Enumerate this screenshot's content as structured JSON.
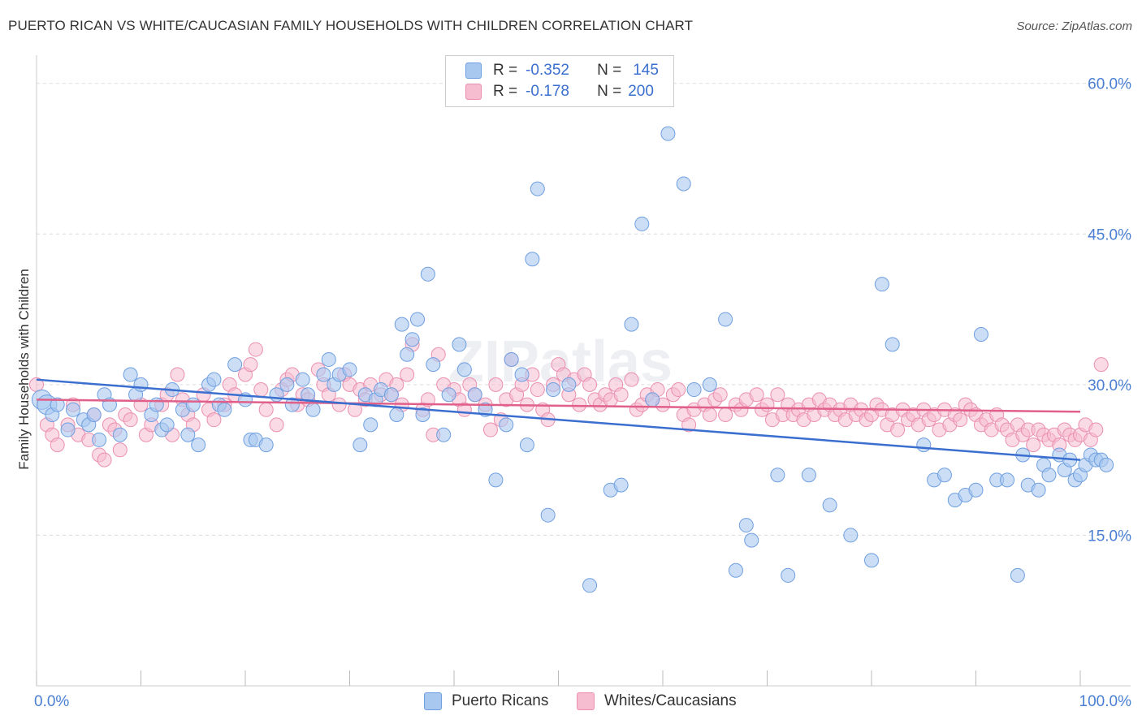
{
  "title": "PUERTO RICAN VS WHITE/CAUCASIAN FAMILY HOUSEHOLDS WITH CHILDREN CORRELATION CHART",
  "source": "Source: ZipAtlas.com",
  "watermark": "ZIPatlas",
  "legend": {
    "r_label": "R =",
    "n_label": "N =",
    "series1_r": "-0.352",
    "series1_n": "145",
    "series2_r": "-0.178",
    "series2_n": "200"
  },
  "colors": {
    "blue_fill": "#a9c8f0",
    "blue_stroke": "#6f9fe0",
    "blue_line": "#3a6fd0",
    "pink_fill": "#f6bcd0",
    "pink_stroke": "#eb8fb0",
    "pink_line": "#e0608a",
    "axis_text": "#4a7fd4"
  },
  "chart_data": {
    "type": "scatter",
    "title": "PUERTO RICAN VS WHITE/CAUCASIAN FAMILY HOUSEHOLDS WITH CHILDREN CORRELATION CHART",
    "xlabel": "",
    "ylabel": "Family Households with Children",
    "xlim": [
      0,
      100
    ],
    "ylim": [
      0,
      62
    ],
    "x_tick_labels": [
      "0.0%",
      "100.0%"
    ],
    "y_ticks": [
      15,
      30,
      45,
      60
    ],
    "y_tick_labels": [
      "15.0%",
      "30.0%",
      "45.0%",
      "60.0%"
    ],
    "grid": true,
    "legend_position": "top-center",
    "series": [
      {
        "name": "Puerto Ricans",
        "r": -0.352,
        "n": 145,
        "trend": {
          "x": [
            0,
            100
          ],
          "y": [
            30.5,
            22.5
          ]
        },
        "points": [
          [
            0.5,
            28.5
          ],
          [
            1,
            28
          ],
          [
            1.5,
            27
          ],
          [
            2,
            28
          ],
          [
            3,
            25.5
          ],
          [
            3.5,
            27.5
          ],
          [
            4.5,
            26.5
          ],
          [
            5,
            26
          ],
          [
            5.5,
            27
          ],
          [
            6,
            24.5
          ],
          [
            6.5,
            29
          ],
          [
            7,
            28
          ],
          [
            8,
            25
          ],
          [
            9,
            31
          ],
          [
            9.5,
            29
          ],
          [
            10,
            30
          ],
          [
            11,
            27
          ],
          [
            11.5,
            28
          ],
          [
            12,
            25.5
          ],
          [
            12.5,
            26
          ],
          [
            13,
            29.5
          ],
          [
            14,
            27.5
          ],
          [
            14.5,
            25
          ],
          [
            15,
            28
          ],
          [
            15.5,
            24
          ],
          [
            16.5,
            30
          ],
          [
            17,
            30.5
          ],
          [
            17.5,
            28
          ],
          [
            18,
            27.5
          ],
          [
            19,
            32
          ],
          [
            20,
            28.5
          ],
          [
            20.5,
            24.5
          ],
          [
            21,
            24.5
          ],
          [
            22,
            24
          ],
          [
            23,
            29
          ],
          [
            24,
            30
          ],
          [
            24.5,
            28
          ],
          [
            25.5,
            30.5
          ],
          [
            26,
            29
          ],
          [
            26.5,
            27.5
          ],
          [
            27.5,
            31
          ],
          [
            28,
            32.5
          ],
          [
            28.5,
            30
          ],
          [
            29,
            31
          ],
          [
            30,
            31.5
          ],
          [
            31,
            24
          ],
          [
            31.5,
            29
          ],
          [
            32,
            26
          ],
          [
            32.5,
            28.5
          ],
          [
            33,
            29.5
          ],
          [
            34,
            29
          ],
          [
            34.5,
            27
          ],
          [
            35,
            36
          ],
          [
            35.5,
            33
          ],
          [
            36,
            34.5
          ],
          [
            36.5,
            36.5
          ],
          [
            37,
            27
          ],
          [
            37.5,
            41
          ],
          [
            38,
            32
          ],
          [
            39,
            25
          ],
          [
            39.5,
            29
          ],
          [
            40.5,
            34
          ],
          [
            41,
            31.5
          ],
          [
            42,
            29
          ],
          [
            43,
            27.5
          ],
          [
            44,
            20.5
          ],
          [
            45,
            26
          ],
          [
            45.5,
            32.5
          ],
          [
            46.5,
            31
          ],
          [
            47,
            24
          ],
          [
            47.5,
            42.5
          ],
          [
            48,
            49.5
          ],
          [
            49,
            17
          ],
          [
            49.5,
            29.5
          ],
          [
            51,
            30
          ],
          [
            53,
            10
          ],
          [
            55,
            19.5
          ],
          [
            56,
            20
          ],
          [
            57,
            36
          ],
          [
            58,
            46
          ],
          [
            59,
            28.5
          ],
          [
            60.5,
            55
          ],
          [
            62,
            50
          ],
          [
            63,
            29.5
          ],
          [
            64.5,
            30
          ],
          [
            66,
            36.5
          ],
          [
            67,
            11.5
          ],
          [
            68,
            16
          ],
          [
            68.5,
            14.5
          ],
          [
            71,
            21
          ],
          [
            72,
            11
          ],
          [
            74,
            21
          ],
          [
            76,
            18
          ],
          [
            78,
            15
          ],
          [
            80,
            12.5
          ],
          [
            81,
            40
          ],
          [
            82,
            34
          ],
          [
            85,
            24
          ],
          [
            86,
            20.5
          ],
          [
            87,
            21
          ],
          [
            88,
            18.5
          ],
          [
            89,
            19
          ],
          [
            90,
            19.5
          ],
          [
            90.5,
            35
          ],
          [
            92,
            20.5
          ],
          [
            93,
            20.5
          ],
          [
            94,
            11
          ],
          [
            94.5,
            23
          ],
          [
            95,
            20
          ],
          [
            96,
            19.5
          ],
          [
            96.5,
            22
          ],
          [
            97,
            21
          ],
          [
            98,
            23
          ],
          [
            98.5,
            21.5
          ],
          [
            99,
            22.5
          ],
          [
            99.5,
            20.5
          ],
          [
            100,
            21
          ],
          [
            100.5,
            22
          ],
          [
            101,
            23
          ],
          [
            101.5,
            22.5
          ],
          [
            102,
            22.5
          ],
          [
            102.5,
            22
          ]
        ]
      },
      {
        "name": "Whites/Caucasians",
        "r": -0.178,
        "n": 200,
        "trend": {
          "x": [
            0,
            100
          ],
          "y": [
            28.5,
            27.3
          ]
        },
        "points": [
          [
            0,
            30
          ],
          [
            1,
            26
          ],
          [
            1.5,
            25
          ],
          [
            2,
            24
          ],
          [
            3,
            26
          ],
          [
            3.5,
            28
          ],
          [
            4,
            25
          ],
          [
            5,
            24.5
          ],
          [
            5.5,
            27
          ],
          [
            6,
            23
          ],
          [
            6.5,
            22.5
          ],
          [
            7,
            26
          ],
          [
            7.5,
            25.5
          ],
          [
            8,
            23.5
          ],
          [
            8.5,
            27
          ],
          [
            9,
            26.5
          ],
          [
            10,
            28
          ],
          [
            10.5,
            25
          ],
          [
            11,
            26
          ],
          [
            12,
            28
          ],
          [
            12.5,
            29
          ],
          [
            13,
            25
          ],
          [
            13.5,
            31
          ],
          [
            14,
            28.5
          ],
          [
            14.5,
            27
          ],
          [
            15,
            26
          ],
          [
            16,
            29
          ],
          [
            16.5,
            27.5
          ],
          [
            17,
            26.5
          ],
          [
            18,
            28
          ],
          [
            18.5,
            30
          ],
          [
            19,
            29
          ],
          [
            20,
            31
          ],
          [
            20.5,
            32
          ],
          [
            21,
            33.5
          ],
          [
            21.5,
            29.5
          ],
          [
            22,
            27.5
          ],
          [
            23,
            26
          ],
          [
            23.5,
            29.5
          ],
          [
            24,
            30.5
          ],
          [
            24.5,
            31
          ],
          [
            25,
            28
          ],
          [
            25.5,
            29
          ],
          [
            26,
            28.5
          ],
          [
            27,
            31.5
          ],
          [
            27.5,
            30
          ],
          [
            28,
            29
          ],
          [
            29,
            28
          ],
          [
            29.5,
            31
          ],
          [
            30,
            30
          ],
          [
            30.5,
            27.5
          ],
          [
            31,
            29.5
          ],
          [
            31.5,
            28.5
          ],
          [
            32,
            30
          ],
          [
            33,
            29
          ],
          [
            33.5,
            30.5
          ],
          [
            34,
            29
          ],
          [
            34.5,
            30
          ],
          [
            35,
            28
          ],
          [
            35.5,
            31
          ],
          [
            36,
            34
          ],
          [
            37,
            27.5
          ],
          [
            37.5,
            28.5
          ],
          [
            38,
            25
          ],
          [
            38.5,
            33
          ],
          [
            39,
            30
          ],
          [
            40,
            29.5
          ],
          [
            40.5,
            28.5
          ],
          [
            41,
            27.5
          ],
          [
            41.5,
            30
          ],
          [
            42,
            29
          ],
          [
            43,
            28
          ],
          [
            43.5,
            25.5
          ],
          [
            44,
            30
          ],
          [
            44.5,
            26.5
          ],
          [
            45,
            28.5
          ],
          [
            45.5,
            32.5
          ],
          [
            46,
            29
          ],
          [
            46.5,
            30
          ],
          [
            47,
            28
          ],
          [
            47.5,
            31
          ],
          [
            48,
            29.5
          ],
          [
            48.5,
            27.5
          ],
          [
            49,
            26.5
          ],
          [
            49.5,
            30
          ],
          [
            50,
            32
          ],
          [
            50.5,
            31
          ],
          [
            51,
            29
          ],
          [
            51.5,
            30.5
          ],
          [
            52,
            28
          ],
          [
            52.5,
            31
          ],
          [
            53,
            30
          ],
          [
            53.5,
            28.5
          ],
          [
            54,
            28
          ],
          [
            54.5,
            29
          ],
          [
            55,
            28.5
          ],
          [
            55.5,
            30
          ],
          [
            56,
            29
          ],
          [
            57,
            30.5
          ],
          [
            57.5,
            27.5
          ],
          [
            58,
            28
          ],
          [
            58.5,
            29
          ],
          [
            59,
            28.5
          ],
          [
            59.5,
            29.5
          ],
          [
            60,
            28
          ],
          [
            61,
            29
          ],
          [
            61.5,
            29.5
          ],
          [
            62,
            27
          ],
          [
            62.5,
            26
          ],
          [
            63,
            27.5
          ],
          [
            64,
            28
          ],
          [
            64.5,
            27
          ],
          [
            65,
            28.5
          ],
          [
            65.5,
            29
          ],
          [
            66,
            27
          ],
          [
            67,
            28
          ],
          [
            67.5,
            27.5
          ],
          [
            68,
            28.5
          ],
          [
            69,
            29
          ],
          [
            69.5,
            27.5
          ],
          [
            70,
            28
          ],
          [
            70.5,
            26.5
          ],
          [
            71,
            29
          ],
          [
            71.5,
            27
          ],
          [
            72,
            28
          ],
          [
            72.5,
            27
          ],
          [
            73,
            27.5
          ],
          [
            73.5,
            26.5
          ],
          [
            74,
            28
          ],
          [
            74.5,
            27
          ],
          [
            75,
            28.5
          ],
          [
            75.5,
            27.5
          ],
          [
            76,
            28
          ],
          [
            76.5,
            27
          ],
          [
            77,
            27.5
          ],
          [
            77.5,
            26.5
          ],
          [
            78,
            28
          ],
          [
            78.5,
            27
          ],
          [
            79,
            27.5
          ],
          [
            79.5,
            26.5
          ],
          [
            80,
            27
          ],
          [
            80.5,
            28
          ],
          [
            81,
            27.5
          ],
          [
            81.5,
            26
          ],
          [
            82,
            27
          ],
          [
            82.5,
            25.5
          ],
          [
            83,
            27.5
          ],
          [
            83.5,
            26.5
          ],
          [
            84,
            27
          ],
          [
            84.5,
            26
          ],
          [
            85,
            27.5
          ],
          [
            85.5,
            26.5
          ],
          [
            86,
            27
          ],
          [
            86.5,
            25.5
          ],
          [
            87,
            27.5
          ],
          [
            87.5,
            26
          ],
          [
            88,
            27
          ],
          [
            88.5,
            26.5
          ],
          [
            89,
            28
          ],
          [
            89.5,
            27.5
          ],
          [
            90,
            27
          ],
          [
            90.5,
            26
          ],
          [
            91,
            26.5
          ],
          [
            91.5,
            25.5
          ],
          [
            92,
            27
          ],
          [
            92.5,
            26
          ],
          [
            93,
            25.5
          ],
          [
            93.5,
            24.5
          ],
          [
            94,
            26
          ],
          [
            94.5,
            25
          ],
          [
            95,
            25.5
          ],
          [
            95.5,
            24
          ],
          [
            96,
            25.5
          ],
          [
            96.5,
            25
          ],
          [
            97,
            24.5
          ],
          [
            97.5,
            25
          ],
          [
            98,
            24
          ],
          [
            98.5,
            25.5
          ],
          [
            99,
            25
          ],
          [
            99.5,
            24.5
          ],
          [
            100,
            25
          ],
          [
            100.5,
            26
          ],
          [
            101,
            24.5
          ],
          [
            101.5,
            25.5
          ],
          [
            102,
            32
          ]
        ]
      }
    ]
  },
  "bottom_legend": {
    "series1": "Puerto Ricans",
    "series2": "Whites/Caucasians"
  }
}
